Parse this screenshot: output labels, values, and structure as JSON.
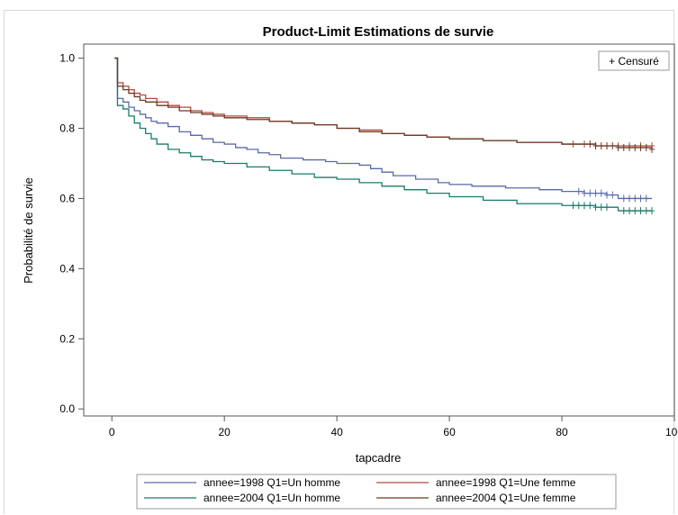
{
  "chart_data": {
    "type": "line",
    "title": "Product-Limit Estimations de survie",
    "xlabel": "tapcadre",
    "ylabel": "Probabilité de survie",
    "xlim": [
      -5,
      100
    ],
    "ylim": [
      -0.02,
      1.04
    ],
    "x_ticks": [
      0,
      20,
      40,
      60,
      80,
      100
    ],
    "x_tick_labels": [
      "0",
      "20",
      "40",
      "60",
      "80",
      "100"
    ],
    "y_ticks": [
      0.0,
      0.2,
      0.4,
      0.6,
      0.8,
      1.0
    ],
    "y_tick_labels": [
      "0.0",
      "0.2",
      "0.4",
      "0.6",
      "0.8",
      "1.0"
    ],
    "grid": false,
    "censored_legend": "+ Censuré",
    "legend_position": "bottom",
    "series": [
      {
        "name": "annee=1998 Q1=Un homme",
        "color": "#5a6aa8",
        "step": true,
        "x": [
          0.5,
          1,
          2,
          3,
          4,
          5,
          6,
          7,
          8,
          10,
          12,
          14,
          16,
          18,
          20,
          22,
          24,
          26,
          28,
          30,
          34,
          38,
          40,
          44,
          46,
          48,
          50,
          54,
          58,
          60,
          64,
          70,
          76,
          80,
          84,
          88,
          90,
          96
        ],
        "y": [
          1.0,
          0.885,
          0.875,
          0.86,
          0.85,
          0.84,
          0.83,
          0.82,
          0.815,
          0.805,
          0.79,
          0.78,
          0.77,
          0.76,
          0.755,
          0.745,
          0.74,
          0.73,
          0.725,
          0.715,
          0.71,
          0.705,
          0.7,
          0.695,
          0.685,
          0.675,
          0.665,
          0.655,
          0.645,
          0.64,
          0.635,
          0.63,
          0.625,
          0.62,
          0.615,
          0.61,
          0.6,
          0.6
        ],
        "censored_x": [
          83,
          84,
          85,
          86,
          87,
          88,
          89,
          91,
          92,
          93,
          94,
          95
        ]
      },
      {
        "name": "annee=1998 Q1=Une femme",
        "color": "#b04b3c",
        "step": true,
        "x": [
          0.5,
          1,
          2,
          3,
          4,
          5,
          6,
          8,
          10,
          12,
          14,
          16,
          18,
          20,
          24,
          28,
          32,
          36,
          40,
          44,
          48,
          52,
          56,
          60,
          66,
          72,
          80,
          86,
          96
        ],
        "y": [
          1.0,
          0.93,
          0.92,
          0.91,
          0.9,
          0.895,
          0.885,
          0.875,
          0.865,
          0.86,
          0.85,
          0.845,
          0.84,
          0.835,
          0.83,
          0.82,
          0.815,
          0.81,
          0.8,
          0.795,
          0.785,
          0.78,
          0.775,
          0.77,
          0.765,
          0.76,
          0.755,
          0.75,
          0.75
        ],
        "censored_x": [
          82,
          84,
          86,
          88,
          90,
          92,
          94,
          96
        ]
      },
      {
        "name": "annee=2004 Q1=Un homme",
        "color": "#1b7b6b",
        "step": true,
        "x": [
          0.5,
          1,
          2,
          3,
          4,
          5,
          6,
          7,
          8,
          10,
          12,
          14,
          16,
          18,
          20,
          24,
          28,
          32,
          36,
          40,
          44,
          48,
          52,
          56,
          60,
          66,
          72,
          80,
          86,
          90,
          96
        ],
        "y": [
          1.0,
          0.865,
          0.855,
          0.835,
          0.815,
          0.8,
          0.785,
          0.77,
          0.755,
          0.74,
          0.73,
          0.72,
          0.71,
          0.705,
          0.7,
          0.69,
          0.68,
          0.67,
          0.66,
          0.655,
          0.645,
          0.635,
          0.625,
          0.615,
          0.605,
          0.595,
          0.585,
          0.58,
          0.575,
          0.565,
          0.565
        ],
        "censored_x": [
          82,
          83,
          84,
          85,
          86,
          87,
          88,
          91,
          92,
          93,
          94,
          95,
          96
        ]
      },
      {
        "name": "annee=2004 Q1=Une femme",
        "color": "#6b3a26",
        "step": true,
        "x": [
          0.5,
          1,
          2,
          3,
          4,
          5,
          6,
          8,
          10,
          12,
          14,
          16,
          18,
          20,
          24,
          28,
          32,
          36,
          40,
          44,
          48,
          52,
          56,
          60,
          66,
          72,
          80,
          86,
          90,
          96
        ],
        "y": [
          1.0,
          0.92,
          0.91,
          0.9,
          0.89,
          0.88,
          0.875,
          0.865,
          0.86,
          0.85,
          0.845,
          0.84,
          0.835,
          0.83,
          0.825,
          0.82,
          0.815,
          0.81,
          0.8,
          0.79,
          0.785,
          0.78,
          0.775,
          0.77,
          0.765,
          0.76,
          0.755,
          0.75,
          0.745,
          0.74
        ],
        "censored_x": [
          85,
          86,
          87,
          88,
          89,
          90,
          91,
          92,
          93,
          94,
          95,
          96
        ]
      }
    ]
  }
}
